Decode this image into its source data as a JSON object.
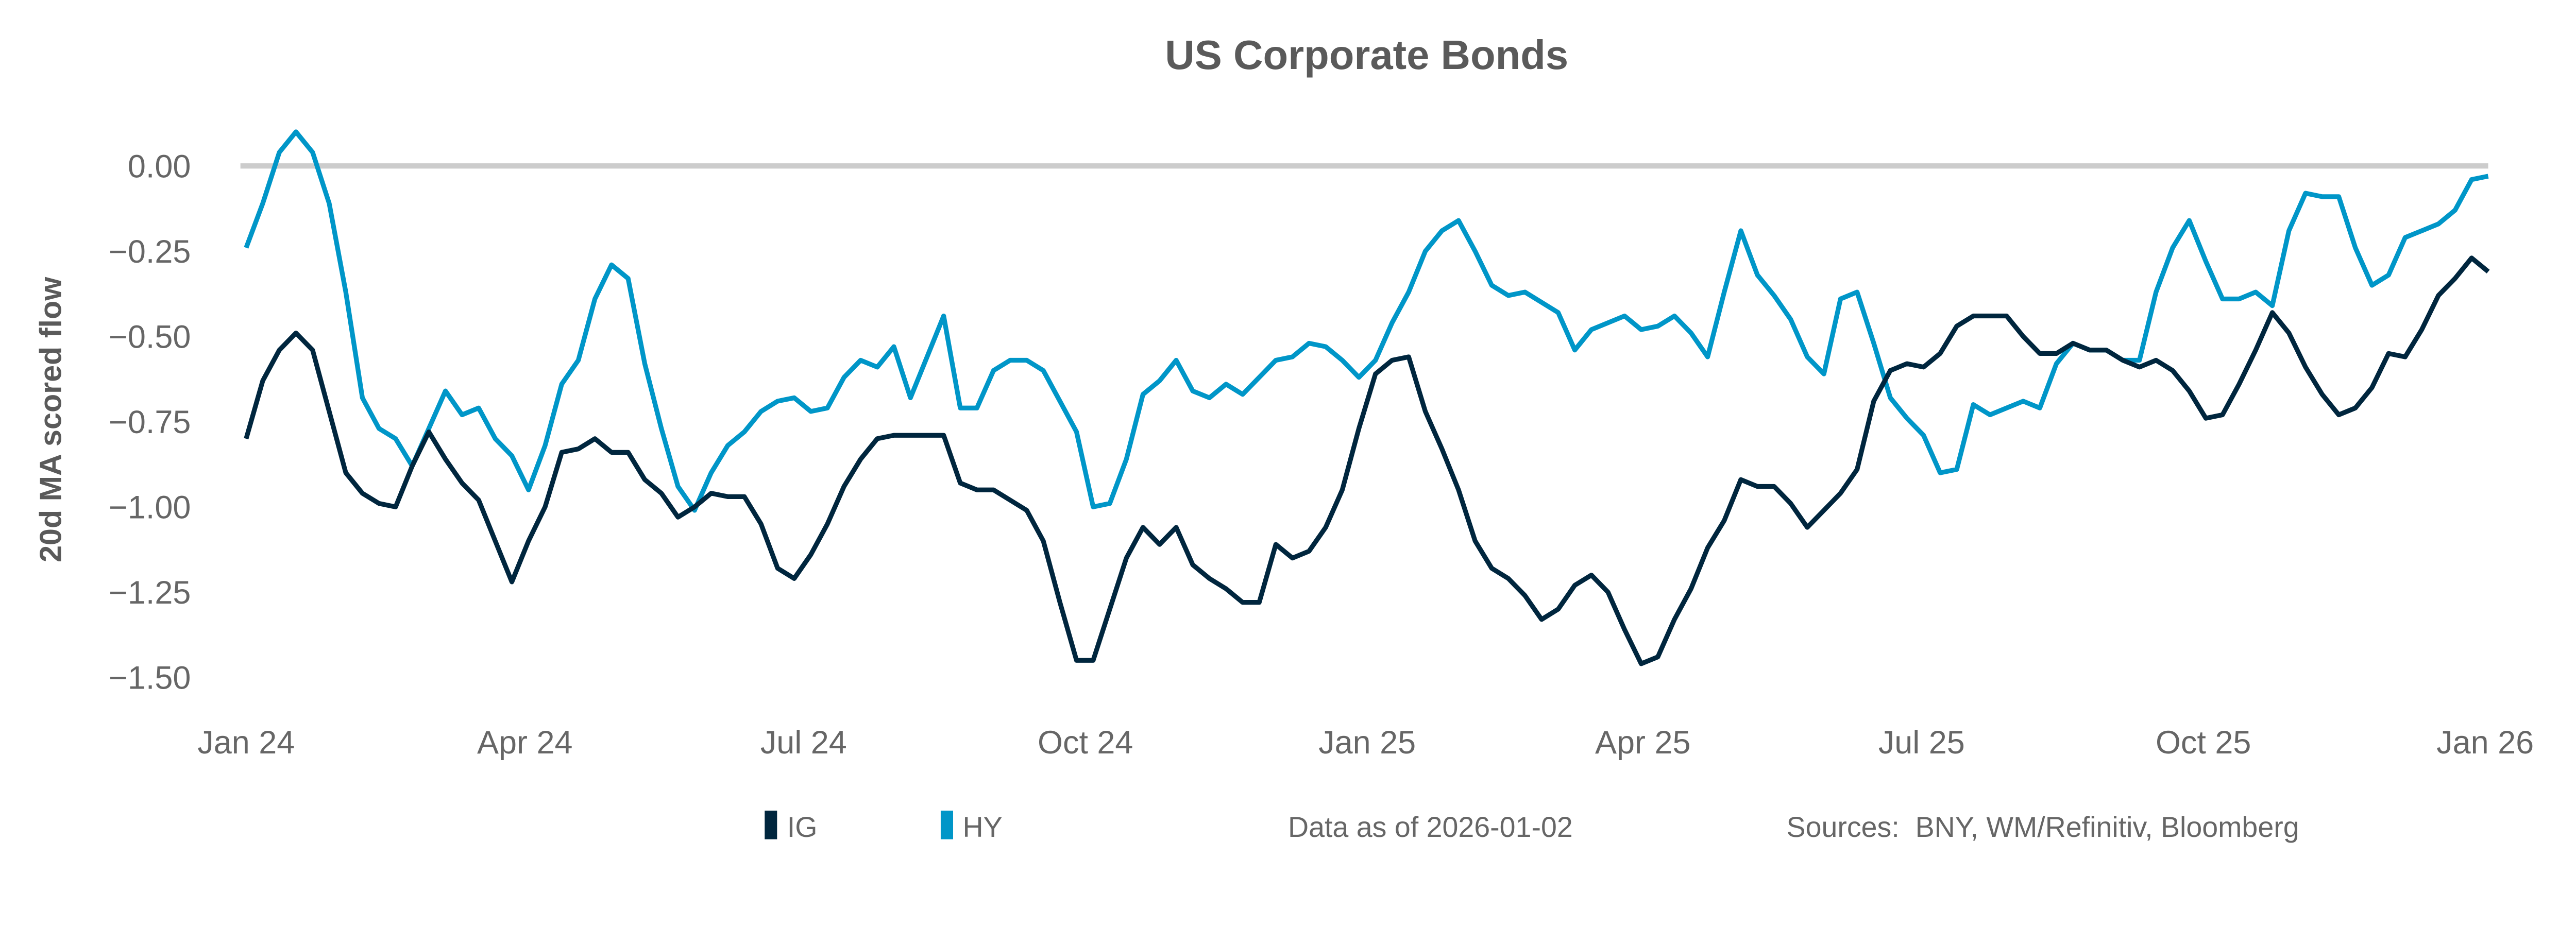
{
  "chart_data": {
    "type": "line",
    "title": "US Corporate Bonds",
    "xlabel": "",
    "ylabel": "20d MA scored flow",
    "x_start": "2024-01-01",
    "x_end": "2026-01-02",
    "xlim": [
      "2024-01-01",
      "2026-01-02"
    ],
    "ylim": [
      -1.6,
      0.12
    ],
    "yticks": [
      0.0,
      -0.25,
      -0.5,
      -0.75,
      -1.0,
      -1.25,
      -1.5
    ],
    "ytick_labels": [
      "0.00",
      "−0.25",
      "−0.50",
      "−0.75",
      "−1.00",
      "−1.25",
      "−1.50"
    ],
    "xticks": [
      "2024-01-01",
      "2024-04-01",
      "2024-07-01",
      "2024-10-01",
      "2025-01-01",
      "2025-04-01",
      "2025-07-01",
      "2025-10-01",
      "2026-01-01"
    ],
    "xtick_labels": [
      "Jan 24",
      "Apr 24",
      "Jul 24",
      "Oct 24",
      "Jan 25",
      "Apr 25",
      "Jul 25",
      "Oct 25",
      "Jan 26"
    ],
    "reference_line": 0.0,
    "grid": false,
    "legend_position": "bottom",
    "series": [
      {
        "name": "IG",
        "color": "#00263e",
        "values": [
          -0.8,
          -0.63,
          -0.54,
          -0.49,
          -0.54,
          -0.72,
          -0.9,
          -0.96,
          -0.99,
          -1.0,
          -0.88,
          -0.78,
          -0.86,
          -0.93,
          -0.98,
          -1.1,
          -1.22,
          -1.1,
          -1.0,
          -0.84,
          -0.83,
          -0.8,
          -0.84,
          -0.84,
          -0.92,
          -0.96,
          -1.03,
          -1.0,
          -0.96,
          -0.97,
          -0.97,
          -1.05,
          -1.18,
          -1.21,
          -1.14,
          -1.05,
          -0.94,
          -0.86,
          -0.8,
          -0.79,
          -0.79,
          -0.79,
          -0.79,
          -0.93,
          -0.95,
          -0.95,
          -0.98,
          -1.01,
          -1.1,
          -1.28,
          -1.45,
          -1.45,
          -1.3,
          -1.15,
          -1.06,
          -1.11,
          -1.06,
          -1.17,
          -1.21,
          -1.24,
          -1.28,
          -1.28,
          -1.11,
          -1.15,
          -1.13,
          -1.06,
          -0.95,
          -0.77,
          -0.61,
          -0.57,
          -0.56,
          -0.72,
          -0.83,
          -0.95,
          -1.1,
          -1.18,
          -1.21,
          -1.26,
          -1.33,
          -1.3,
          -1.23,
          -1.2,
          -1.25,
          -1.36,
          -1.46,
          -1.44,
          -1.33,
          -1.24,
          -1.12,
          -1.04,
          -0.92,
          -0.94,
          -0.94,
          -0.99,
          -1.06,
          -1.01,
          -0.96,
          -0.89,
          -0.69,
          -0.6,
          -0.58,
          -0.59,
          -0.55,
          -0.47,
          -0.44,
          -0.44,
          -0.44,
          -0.5,
          -0.55,
          -0.55,
          -0.52,
          -0.54,
          -0.54,
          -0.57,
          -0.59,
          -0.57,
          -0.6,
          -0.66,
          -0.74,
          -0.73,
          -0.64,
          -0.54,
          -0.43,
          -0.49,
          -0.59,
          -0.67,
          -0.73,
          -0.71,
          -0.65,
          -0.55,
          -0.56,
          -0.48,
          -0.38,
          -0.33,
          -0.27,
          -0.31
        ]
      },
      {
        "name": "HY",
        "color": "#0096c8",
        "values": [
          -0.24,
          -0.11,
          0.04,
          0.1,
          0.04,
          -0.11,
          -0.37,
          -0.68,
          -0.77,
          -0.8,
          -0.88,
          -0.77,
          -0.66,
          -0.73,
          -0.71,
          -0.8,
          -0.85,
          -0.95,
          -0.82,
          -0.64,
          -0.57,
          -0.39,
          -0.29,
          -0.33,
          -0.58,
          -0.77,
          -0.94,
          -1.01,
          -0.9,
          -0.82,
          -0.78,
          -0.72,
          -0.69,
          -0.68,
          -0.72,
          -0.71,
          -0.62,
          -0.57,
          -0.59,
          -0.53,
          -0.68,
          -0.56,
          -0.44,
          -0.71,
          -0.71,
          -0.6,
          -0.57,
          -0.57,
          -0.6,
          -0.69,
          -0.78,
          -1.0,
          -0.99,
          -0.86,
          -0.67,
          -0.63,
          -0.57,
          -0.66,
          -0.68,
          -0.64,
          -0.67,
          -0.62,
          -0.57,
          -0.56,
          -0.52,
          -0.53,
          -0.57,
          -0.62,
          -0.57,
          -0.46,
          -0.37,
          -0.25,
          -0.19,
          -0.16,
          -0.25,
          -0.35,
          -0.38,
          -0.37,
          -0.4,
          -0.43,
          -0.54,
          -0.48,
          -0.46,
          -0.44,
          -0.48,
          -0.47,
          -0.44,
          -0.49,
          -0.56,
          -0.37,
          -0.19,
          -0.32,
          -0.38,
          -0.45,
          -0.56,
          -0.61,
          -0.39,
          -0.37,
          -0.52,
          -0.68,
          -0.74,
          -0.79,
          -0.9,
          -0.89,
          -0.7,
          -0.73,
          -0.71,
          -0.69,
          -0.71,
          -0.58,
          -0.52,
          -0.54,
          -0.54,
          -0.57,
          -0.57,
          -0.37,
          -0.24,
          -0.16,
          -0.28,
          -0.39,
          -0.39,
          -0.37,
          -0.41,
          -0.19,
          -0.08,
          -0.09,
          -0.09,
          -0.24,
          -0.35,
          -0.32,
          -0.21,
          -0.19,
          -0.17,
          -0.13,
          -0.04,
          -0.03
        ]
      }
    ]
  },
  "footer": {
    "data_as_of": "Data as of 2026-01-02",
    "sources": "Sources:  BNY, WM/Refinitiv, Bloomberg"
  },
  "colors": {
    "reference_line": "#cccccc",
    "text": "#666666"
  }
}
